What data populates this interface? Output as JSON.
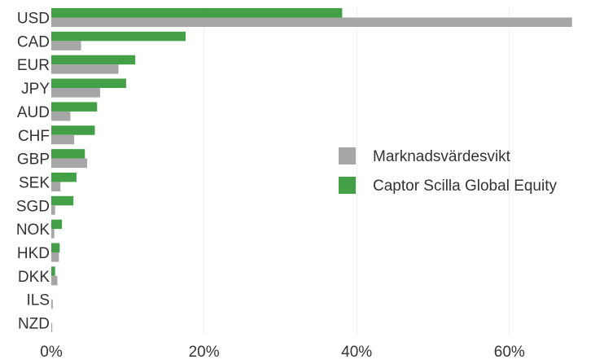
{
  "chart_data": {
    "type": "bar",
    "orientation": "horizontal",
    "categories": [
      "USD",
      "CAD",
      "EUR",
      "JPY",
      "AUD",
      "CHF",
      "GBP",
      "SEK",
      "SGD",
      "NOK",
      "HKD",
      "DKK",
      "ILS",
      "NZD"
    ],
    "series": [
      {
        "name": "Captor Scilla Global Equity",
        "color": "#43a047",
        "values": [
          38.1,
          17.6,
          11.0,
          9.8,
          6.0,
          5.7,
          4.4,
          3.3,
          2.9,
          1.4,
          1.1,
          0.5,
          0.0,
          0.0
        ]
      },
      {
        "name": "Marknadsvärdesvikt",
        "color": "#a6a6a6",
        "values": [
          68.2,
          3.9,
          8.8,
          6.4,
          2.5,
          3.0,
          4.7,
          1.2,
          0.5,
          0.4,
          1.0,
          0.8,
          0.2,
          0.1
        ]
      }
    ],
    "xlim": [
      0,
      72
    ],
    "xticks": [
      0,
      20,
      40,
      60
    ],
    "xtick_format": "{v}%",
    "title": "",
    "xlabel": "",
    "ylabel": "",
    "grid": "vertical",
    "legend": {
      "position": "right",
      "order": [
        "Marknadsvärdesvikt",
        "Captor Scilla Global Equity"
      ]
    }
  }
}
